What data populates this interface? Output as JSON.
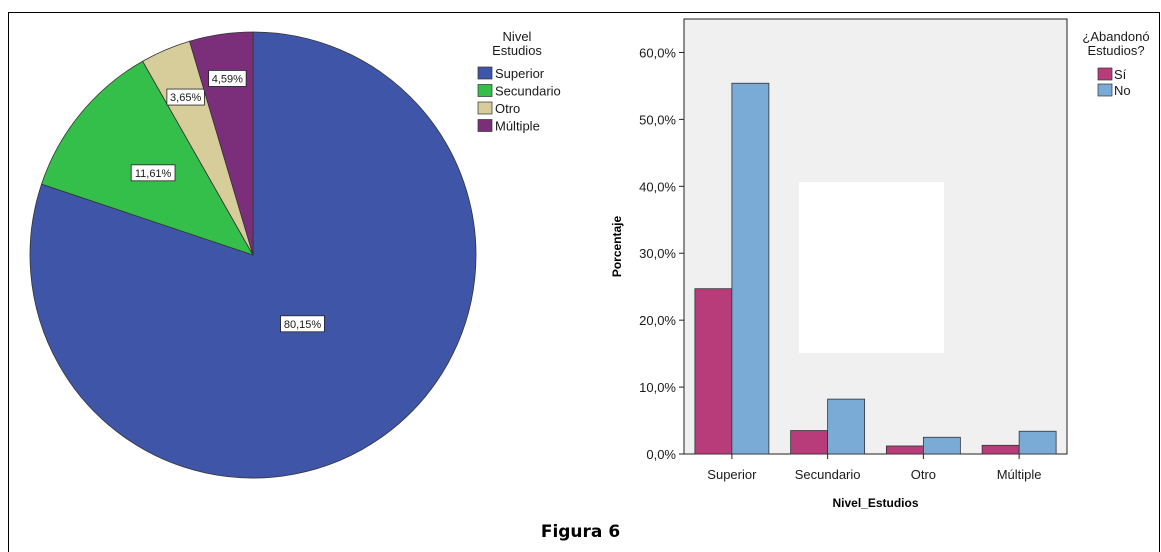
{
  "figure_caption": "Figura 6",
  "chart_data": [
    {
      "type": "pie",
      "legend_title": "Nivel\nEstudios",
      "legend_placement": "top-right",
      "slices": [
        {
          "label": "Superior",
          "value": 80.15,
          "display": "80,15%",
          "color": "#3f55a8"
        },
        {
          "label": "Secundario",
          "value": 11.61,
          "display": "11,61%",
          "color": "#34bf4a"
        },
        {
          "label": "Otro",
          "value": 3.65,
          "display": "3,65%",
          "color": "#d6cd9a"
        },
        {
          "label": "Múltiple",
          "value": 4.59,
          "display": "4,59%",
          "color": "#7b2f7a"
        }
      ]
    },
    {
      "type": "bar",
      "title": "",
      "xlabel": "Nivel_Estudios",
      "ylabel": "Porcentaje",
      "ylim": [
        0,
        65
      ],
      "yticks": [
        {
          "value": 0,
          "label": "0,0%"
        },
        {
          "value": 10,
          "label": "10,0%"
        },
        {
          "value": 20,
          "label": "20,0%"
        },
        {
          "value": 30,
          "label": "30,0%"
        },
        {
          "value": 40,
          "label": "40,0%"
        },
        {
          "value": 50,
          "label": "50,0%"
        },
        {
          "value": 60,
          "label": "60,0%"
        }
      ],
      "categories": [
        "Superior",
        "Secundario",
        "Otro",
        "Múltiple"
      ],
      "legend_title": "¿Abandonó\nEstudios?",
      "legend_placement": "right",
      "grid": false,
      "series": [
        {
          "name": "Sí",
          "color": "#b83b7a",
          "values": [
            24.7,
            3.5,
            1.2,
            1.3
          ]
        },
        {
          "name": "No",
          "color": "#7aaad6",
          "values": [
            55.4,
            8.2,
            2.5,
            3.4
          ]
        }
      ]
    }
  ]
}
